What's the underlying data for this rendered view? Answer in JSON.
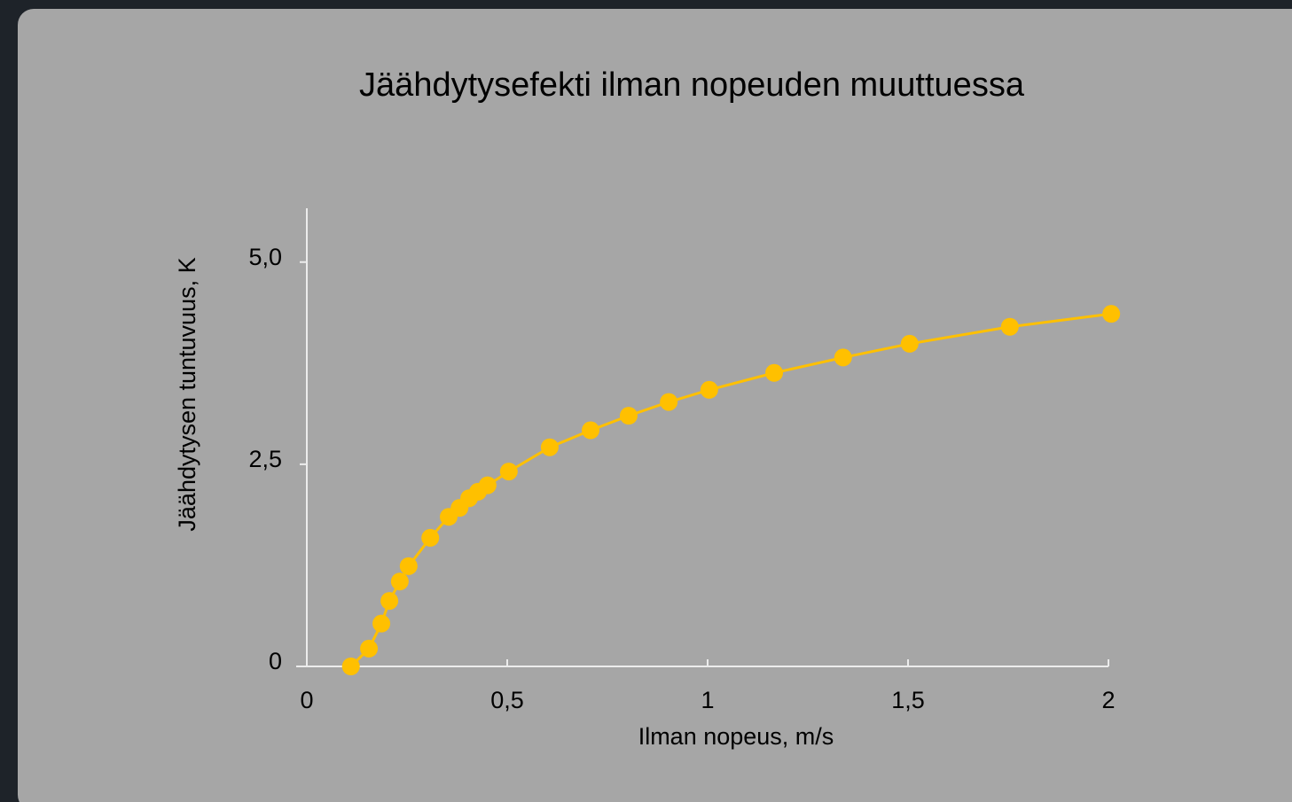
{
  "chart_data": {
    "type": "line",
    "title": "Jäähdytysefekti ilman nopeuden muuttuessa",
    "x_label": "Ilman nopeus, m/s",
    "y_label": "Jäähdytysen tuntuvuus, K",
    "series": [
      {
        "name": "Jäähdytysefekti",
        "color": "#ffc000",
        "x": [
          0.11,
          0.155,
          0.186,
          0.206,
          0.232,
          0.254,
          0.308,
          0.354,
          0.381,
          0.405,
          0.427,
          0.451,
          0.504,
          0.606,
          0.708,
          0.803,
          0.903,
          1.004,
          1.166,
          1.338,
          1.504,
          1.754,
          2.007
        ],
        "values": [
          0,
          0.22,
          0.53,
          0.81,
          1.05,
          1.24,
          1.59,
          1.85,
          1.96,
          2.08,
          2.16,
          2.24,
          2.41,
          2.71,
          2.92,
          3.1,
          3.27,
          3.42,
          3.63,
          3.82,
          3.99,
          4.2,
          4.36
        ]
      }
    ],
    "xlim": [
      0,
      2
    ],
    "ylim": [
      0,
      5.6
    ],
    "xticks": [
      0,
      {
        "value": 0.5,
        "label": "0,5"
      },
      1,
      {
        "value": 1.5,
        "label": "1,5"
      },
      2
    ],
    "yticks": [
      0,
      {
        "value": 2.5,
        "label": "2,5"
      },
      {
        "value": 5,
        "label": "5,0"
      }
    ]
  }
}
